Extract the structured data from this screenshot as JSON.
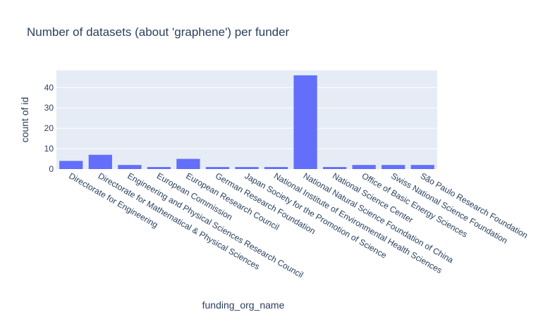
{
  "chart_data": {
    "type": "bar",
    "title": "Number of datasets (about 'graphene') per funder",
    "xlabel": "funding_org_name",
    "ylabel": "count of id",
    "categories": [
      "Directorate for Engineering",
      "Directorate for Mathematical & Physical Sciences",
      "Engineering and Physical Sciences Research Council",
      "European Commission",
      "European Research Council",
      "German Research Foundation",
      "Japan Society for the Promotion of Science",
      "National Institute of Environmental Health Sciences",
      "National Natural Science Foundation of China",
      "National Science Center",
      "Office of Basic Energy Sciences",
      "Swiss National Science Foundation",
      "São Paulo Research Foundation"
    ],
    "values": [
      4,
      7,
      2,
      1,
      5,
      1,
      1,
      1,
      46,
      1,
      2,
      2,
      2
    ],
    "ylim": [
      0,
      48.4
    ],
    "yticks": [
      0,
      10,
      20,
      30,
      40
    ],
    "grid": true,
    "colors": {
      "bar": "#636efa",
      "plot_bg": "#e5ecf6",
      "grid": "#ffffff",
      "text": "#2a3f5f"
    }
  }
}
